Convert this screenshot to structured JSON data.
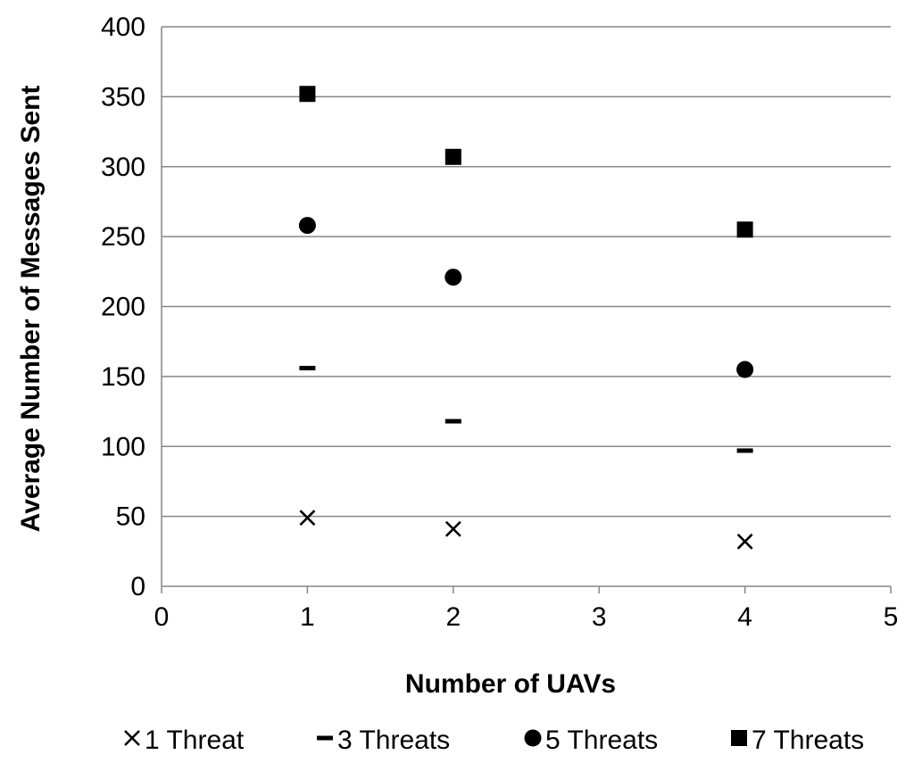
{
  "chart_data": {
    "type": "scatter",
    "title": "",
    "xlabel": "Number of UAVs",
    "ylabel": "Average Number of Messages Sent",
    "xlim": [
      0,
      5
    ],
    "ylim": [
      0,
      400
    ],
    "x_ticks": [
      "0",
      "1",
      "2",
      "3",
      "4",
      "5"
    ],
    "y_ticks": [
      "0",
      "50",
      "100",
      "150",
      "200",
      "250",
      "300",
      "350",
      "400"
    ],
    "grid": "horizontal",
    "legend_position": "bottom",
    "series": [
      {
        "name": "1 Threat",
        "marker": "x",
        "x": [
          1,
          2,
          4
        ],
        "y": [
          49,
          41,
          32
        ]
      },
      {
        "name": "3 Threats",
        "marker": "dash",
        "x": [
          1,
          2,
          4
        ],
        "y": [
          156,
          118,
          97
        ]
      },
      {
        "name": "5 Threats",
        "marker": "circle",
        "x": [
          1,
          2,
          4
        ],
        "y": [
          258,
          221,
          155
        ]
      },
      {
        "name": "7 Threats",
        "marker": "square",
        "x": [
          1,
          2,
          4
        ],
        "y": [
          352,
          307,
          255
        ]
      }
    ],
    "colors": {
      "markers": "#000000",
      "grid": "#868686",
      "axis": "#868686"
    }
  }
}
